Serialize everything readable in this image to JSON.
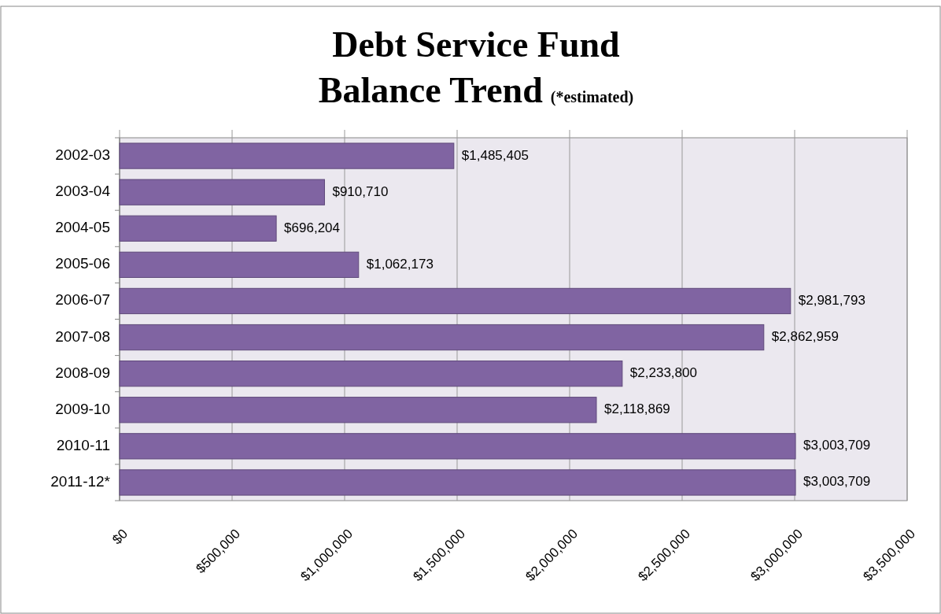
{
  "chart_data": {
    "type": "bar",
    "orientation": "horizontal",
    "title": "Debt Service Fund\nBalance Trend",
    "subtitle": "(*estimated)",
    "categories": [
      "2002-03",
      "2003-04",
      "2004-05",
      "2005-06",
      "2006-07",
      "2007-08",
      "2008-09",
      "2009-10",
      "2010-11",
      "2011-12*"
    ],
    "values": [
      1485405,
      910710,
      696204,
      1062173,
      2981793,
      2862959,
      2233800,
      2118869,
      3003709,
      3003709
    ],
    "value_labels": [
      "$1,485,405",
      "$910,710",
      "$696,204",
      "$1,062,173",
      "$2,981,793",
      "$2,862,959",
      "$2,233,800",
      "$2,118,869",
      "$3,003,709",
      "$3,003,709"
    ],
    "color": "#8064a2",
    "xlim": [
      0,
      3500000
    ],
    "xticks": [
      {
        "value": 0,
        "label": "$0"
      },
      {
        "value": 500000,
        "label": "$500,000"
      },
      {
        "value": 1000000,
        "label": "$1,000,000"
      },
      {
        "value": 1500000,
        "label": "$1,500,000"
      },
      {
        "value": 2000000,
        "label": "$2,000,000"
      },
      {
        "value": 2500000,
        "label": "$2,500,000"
      },
      {
        "value": 3000000,
        "label": "$3,000,000"
      },
      {
        "value": 3500000,
        "label": "$3,500,000"
      }
    ],
    "grid": "x"
  }
}
